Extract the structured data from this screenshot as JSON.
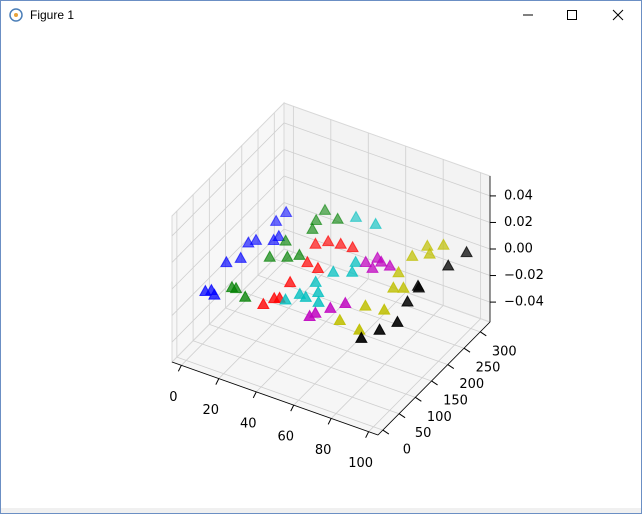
{
  "window": {
    "title": "Figure 1"
  },
  "chart_data": {
    "type": "scatter3d",
    "xlim": [
      -5,
      105
    ],
    "ylim": [
      -15,
      330
    ],
    "zlim": [
      -0.055,
      0.055
    ],
    "xticks": [
      0,
      20,
      40,
      60,
      80,
      100
    ],
    "yticks": [
      0,
      50,
      100,
      150,
      200,
      250,
      300
    ],
    "zticks": [
      {
        "value": -0.04,
        "label": "−0.04"
      },
      {
        "value": -0.02,
        "label": "−0.02"
      },
      {
        "value": 0,
        "label": "0.00"
      },
      0.02,
      0.04
    ],
    "grid": true,
    "marker": "triangle",
    "series": [
      {
        "color": "#0000ff",
        "x": [
          9,
          11,
          14,
          6,
          10,
          7,
          9,
          16,
          16.5,
          9.5,
          10
        ],
        "y": [
          7,
          14,
          6,
          89,
          110,
          151,
          163,
          177,
          190,
          222,
          250
        ],
        "z": [
          0,
          0,
          0,
          0,
          0,
          0,
          0,
          0,
          0,
          0,
          0
        ]
      },
      {
        "color": "#008000",
        "x": [
          18,
          20,
          27,
          21,
          28,
          21,
          32,
          27,
          25,
          24.5,
          33
        ],
        "y": [
          37,
          38,
          26,
          136,
          150,
          185,
          164,
          233,
          256,
          286,
          276
        ],
        "z": [
          0,
          0,
          0,
          0,
          0,
          0,
          0,
          0,
          0,
          0,
          0
        ]
      },
      {
        "color": "#ff0000",
        "x": [
          37,
          39,
          41,
          39,
          38,
          44.5,
          34,
          38,
          44,
          50
        ],
        "y": [
          24,
          46,
          51,
          95,
          154,
          149,
          202,
          218,
          222,
          224
        ],
        "z": [
          0,
          0,
          0,
          0,
          0,
          0,
          0,
          0,
          0,
          0
        ]
      },
      {
        "color": "#00bfbf",
        "x": [
          44,
          47.5,
          51,
          58,
          54,
          49,
          52,
          59.5,
          57,
          39.5,
          50
        ],
        "y": [
          52,
          76,
          74,
          73,
          95,
          116,
          153,
          168,
          193,
          295,
          295
        ],
        "z": [
          0,
          0,
          0,
          0,
          0,
          0,
          0,
          0,
          0,
          0,
          0
        ]
      },
      {
        "color": "#bf00bf",
        "x": [
          61,
          60,
          65,
          69,
          66,
          67,
          61,
          72,
          64
        ],
        "y": [
          46,
          34,
          69,
          92,
          193,
          214,
          201,
          212,
          220
        ],
        "z": [
          0,
          0,
          0,
          0,
          0,
          0,
          0,
          0,
          0
        ]
      },
      {
        "color": "#bfbf00",
        "x": [
          73.5,
          85,
          78,
          87,
          82,
          86,
          78,
          77,
          79,
          85,
          83
        ],
        "y": [
          49,
          43,
          102,
          108,
          165,
          173,
          204,
          252,
          287,
          302,
          271
        ],
        "z": [
          0,
          0,
          0,
          0,
          0,
          0,
          0,
          0,
          0,
          0,
          0
        ]
      },
      {
        "color": "#000000",
        "x": [
          89,
          93,
          97,
          93,
          91,
          92,
          95,
          97
        ],
        "y": [
          26,
          59,
          91,
          145,
          189,
          186,
          259,
          304
        ],
        "z": [
          0,
          0,
          0,
          0,
          0,
          0,
          0,
          0
        ]
      }
    ]
  }
}
